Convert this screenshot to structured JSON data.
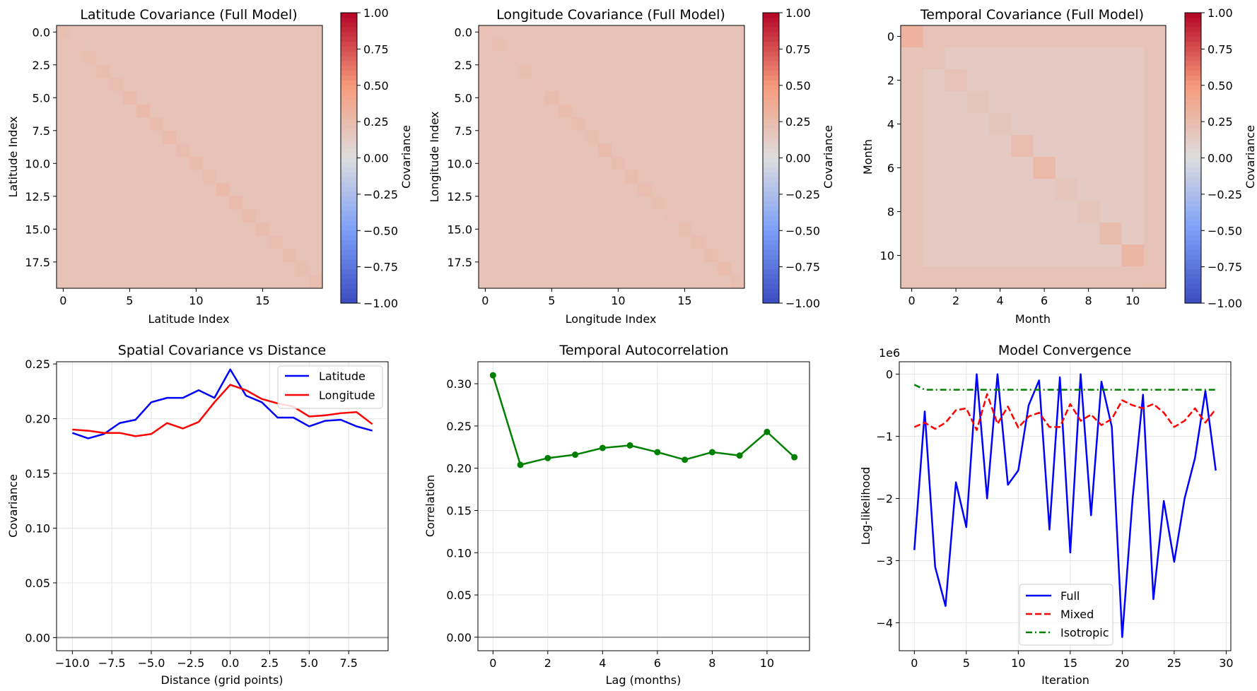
{
  "chart_data": [
    {
      "type": "heatmap",
      "title": "Latitude Covariance (Full Model)",
      "xlabel": "Latitude Index",
      "ylabel": "Latitude Index",
      "n": 20,
      "x_ticks": [
        "0",
        "5",
        "10",
        "15"
      ],
      "x_tick_values": [
        0,
        5,
        10,
        15
      ],
      "y_ticks": [
        "0.0",
        "2.5",
        "5.0",
        "7.5",
        "10.0",
        "12.5",
        "15.0",
        "17.5"
      ],
      "y_tick_values": [
        0,
        2.5,
        5,
        7.5,
        10,
        12.5,
        15,
        17.5
      ],
      "colorbar": {
        "label": "Covariance",
        "range": [
          -1,
          1
        ],
        "ticks": [
          "1.00",
          "0.75",
          "0.50",
          "0.25",
          "0.00",
          "−0.25",
          "−0.50",
          "−0.75",
          "−1.00"
        ],
        "tick_values": [
          1,
          0.75,
          0.5,
          0.25,
          0,
          -0.25,
          -0.5,
          -0.75,
          -1
        ],
        "colormap": "coolwarm"
      },
      "offdiagonal_value": 0.2,
      "diagonal_values": [
        0.22,
        0.21,
        0.22,
        0.24,
        0.23,
        0.26,
        0.27,
        0.25,
        0.26,
        0.23,
        0.25,
        0.23,
        0.27,
        0.26,
        0.25,
        0.24,
        0.23,
        0.24,
        0.22,
        0.23
      ]
    },
    {
      "type": "heatmap",
      "title": "Longitude Covariance (Full Model)",
      "xlabel": "Longitude Index",
      "ylabel": "Longitude Index",
      "n": 20,
      "x_ticks": [
        "0",
        "5",
        "10",
        "15"
      ],
      "x_tick_values": [
        0,
        5,
        10,
        15
      ],
      "y_ticks": [
        "0.0",
        "2.5",
        "5.0",
        "7.5",
        "10.0",
        "12.5",
        "15.0",
        "17.5"
      ],
      "y_tick_values": [
        0,
        2.5,
        5,
        7.5,
        10,
        12.5,
        15,
        17.5
      ],
      "colorbar": {
        "label": "Covariance",
        "range": [
          -1,
          1
        ],
        "ticks": [
          "1.00",
          "0.75",
          "0.50",
          "0.25",
          "0.00",
          "−0.25",
          "−0.50",
          "−0.75",
          "−1.00"
        ],
        "tick_values": [
          1,
          0.75,
          0.5,
          0.25,
          0,
          -0.25,
          -0.5,
          -0.75,
          -1
        ],
        "colormap": "coolwarm"
      },
      "offdiagonal_value": 0.2,
      "diagonal_values": [
        0.21,
        0.22,
        0.21,
        0.22,
        0.21,
        0.24,
        0.25,
        0.24,
        0.22,
        0.26,
        0.23,
        0.24,
        0.23,
        0.22,
        0.21,
        0.22,
        0.23,
        0.24,
        0.25,
        0.22
      ]
    },
    {
      "type": "heatmap",
      "title": "Temporal Covariance (Full Model)",
      "xlabel": "Month",
      "ylabel": "Month",
      "n": 12,
      "x_ticks": [
        "0",
        "2",
        "4",
        "6",
        "8",
        "10"
      ],
      "x_tick_values": [
        0,
        2,
        4,
        6,
        8,
        10
      ],
      "y_ticks": [
        "0",
        "2",
        "4",
        "6",
        "8",
        "10"
      ],
      "y_tick_values": [
        0,
        2,
        4,
        6,
        8,
        10
      ],
      "colorbar": {
        "label": "Covariance",
        "range": [
          -1,
          1
        ],
        "ticks": [
          "1.00",
          "0.75",
          "0.50",
          "0.25",
          "0.00",
          "−0.25",
          "−0.50",
          "−0.75",
          "−1.00"
        ],
        "tick_values": [
          1,
          0.75,
          0.5,
          0.25,
          0,
          -0.25,
          -0.5,
          -0.75,
          -1
        ],
        "colormap": "coolwarm"
      },
      "edge_value": 0.2,
      "interior_value": 0.14,
      "diagonal_values": [
        0.31,
        0.2,
        0.2,
        0.18,
        0.17,
        0.23,
        0.27,
        0.17,
        0.18,
        0.24,
        0.29,
        0.21
      ]
    },
    {
      "type": "line",
      "title": "Spatial Covariance vs Distance",
      "xlabel": "Distance (grid points)",
      "ylabel": "Covariance",
      "x": [
        -10,
        -9,
        -8,
        -7,
        -6,
        -5,
        -4,
        -3,
        -2,
        -1,
        0,
        1,
        2,
        3,
        4,
        5,
        6,
        7,
        8,
        9
      ],
      "xlim": [
        -11,
        10
      ],
      "ylim": [
        -0.012,
        0.252
      ],
      "x_ticks": [
        "−10.0",
        "−7.5",
        "−5.0",
        "−2.5",
        "0.0",
        "2.5",
        "5.0",
        "7.5"
      ],
      "x_tick_values": [
        -10,
        -7.5,
        -5,
        -2.5,
        0,
        2.5,
        5,
        7.5
      ],
      "y_ticks": [
        "0.00",
        "0.05",
        "0.10",
        "0.15",
        "0.20",
        "0.25"
      ],
      "y_tick_values": [
        0,
        0.05,
        0.1,
        0.15,
        0.2,
        0.25
      ],
      "grid": true,
      "hline": 0,
      "legend": "top-right",
      "series": [
        {
          "name": "Latitude",
          "color": "#0000ff",
          "values": [
            0.187,
            0.182,
            0.186,
            0.196,
            0.199,
            0.215,
            0.219,
            0.219,
            0.226,
            0.219,
            0.245,
            0.221,
            0.215,
            0.201,
            0.201,
            0.193,
            0.198,
            0.199,
            0.193,
            0.189
          ]
        },
        {
          "name": "Longitude",
          "color": "#ff0000",
          "values": [
            0.19,
            0.189,
            0.187,
            0.187,
            0.184,
            0.186,
            0.196,
            0.191,
            0.197,
            0.215,
            0.231,
            0.226,
            0.218,
            0.214,
            0.211,
            0.202,
            0.203,
            0.205,
            0.206,
            0.195
          ]
        }
      ]
    },
    {
      "type": "line",
      "title": "Temporal Autocorrelation",
      "xlabel": "Lag (months)",
      "ylabel": "Correlation",
      "x": [
        0,
        1,
        2,
        3,
        4,
        5,
        6,
        7,
        8,
        9,
        10,
        11
      ],
      "xlim": [
        -0.55,
        11.55
      ],
      "ylim": [
        -0.016,
        0.326
      ],
      "x_ticks": [
        "0",
        "2",
        "4",
        "6",
        "8",
        "10"
      ],
      "x_tick_values": [
        0,
        2,
        4,
        6,
        8,
        10
      ],
      "y_ticks": [
        "0.00",
        "0.05",
        "0.10",
        "0.15",
        "0.20",
        "0.25",
        "0.30"
      ],
      "y_tick_values": [
        0,
        0.05,
        0.1,
        0.15,
        0.2,
        0.25,
        0.3
      ],
      "grid": true,
      "hline": 0,
      "series": [
        {
          "color": "#008000",
          "markers": true,
          "values": [
            0.31,
            0.204,
            0.212,
            0.216,
            0.224,
            0.227,
            0.219,
            0.21,
            0.219,
            0.215,
            0.243,
            0.213
          ]
        }
      ]
    },
    {
      "type": "line",
      "title": "Model Convergence",
      "xlabel": "Iteration",
      "ylabel": "Log-likelihood",
      "offset_label": "1e6",
      "x": [
        0,
        1,
        2,
        3,
        4,
        5,
        6,
        7,
        8,
        9,
        10,
        11,
        12,
        13,
        14,
        15,
        16,
        17,
        18,
        19,
        20,
        21,
        22,
        23,
        24,
        25,
        26,
        27,
        28,
        29
      ],
      "xlim": [
        -1.45,
        30.45
      ],
      "ylim": [
        -4.45,
        0.2
      ],
      "x_ticks": [
        "0",
        "5",
        "10",
        "15",
        "20",
        "25",
        "30"
      ],
      "x_tick_values": [
        0,
        5,
        10,
        15,
        20,
        25,
        30
      ],
      "y_ticks": [
        "0",
        "−1",
        "−2",
        "−3",
        "−4"
      ],
      "y_tick_values": [
        0,
        -1,
        -2,
        -3,
        -4
      ],
      "grid": true,
      "legend": "lower-center",
      "series": [
        {
          "name": "Full",
          "color": "#0000ff",
          "dash": "solid",
          "values": [
            -2.83,
            -0.6,
            -3.1,
            -3.73,
            -1.74,
            -2.46,
            0.0,
            -2.0,
            0.0,
            -1.78,
            -1.55,
            -0.5,
            -0.1,
            -2.5,
            -0.05,
            -2.87,
            0.0,
            -2.27,
            -0.12,
            -0.85,
            -4.23,
            -2.0,
            -0.33,
            -3.62,
            -2.04,
            -3.02,
            -2.0,
            -1.35,
            -0.27,
            -1.55
          ]
        },
        {
          "name": "Mixed",
          "color": "#ff0000",
          "dash": "dashed",
          "values": [
            -0.85,
            -0.78,
            -0.88,
            -0.78,
            -0.58,
            -0.55,
            -0.9,
            -0.32,
            -0.8,
            -0.52,
            -0.86,
            -0.68,
            -0.62,
            -0.85,
            -0.85,
            -0.48,
            -0.75,
            -0.65,
            -0.82,
            -0.72,
            -0.42,
            -0.5,
            -0.55,
            -0.48,
            -0.62,
            -0.85,
            -0.75,
            -0.55,
            -0.78,
            -0.56
          ]
        },
        {
          "name": "Isotropic",
          "color": "#008000",
          "dash": "dashdot",
          "values": [
            -0.17,
            -0.25,
            -0.25,
            -0.25,
            -0.25,
            -0.25,
            -0.25,
            -0.25,
            -0.25,
            -0.25,
            -0.25,
            -0.25,
            -0.25,
            -0.25,
            -0.25,
            -0.25,
            -0.25,
            -0.25,
            -0.25,
            -0.25,
            -0.25,
            -0.25,
            -0.25,
            -0.25,
            -0.25,
            -0.25,
            -0.25,
            -0.25,
            -0.25,
            -0.25
          ]
        }
      ]
    }
  ]
}
